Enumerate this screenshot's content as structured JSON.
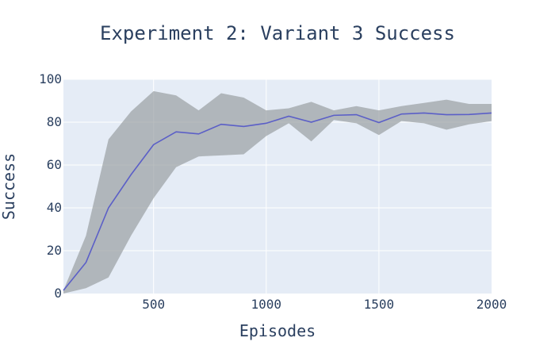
{
  "chart_data": {
    "type": "line",
    "title": "Experiment 2: Variant 3 Success",
    "xlabel": "Episodes",
    "ylabel": "Success",
    "xlim": [
      100,
      2000
    ],
    "ylim": [
      0,
      100
    ],
    "x_ticks": [
      500,
      1000,
      1500,
      2000
    ],
    "y_ticks": [
      0,
      20,
      40,
      60,
      80,
      100
    ],
    "grid": true,
    "colors": {
      "plot_bg": "#e5ecf6",
      "grid": "#ffffff",
      "band": "#9a9fa3",
      "line": "#5b5fc7"
    },
    "x": [
      100,
      200,
      300,
      400,
      500,
      600,
      700,
      800,
      900,
      1000,
      1100,
      1200,
      1300,
      1400,
      1500,
      1600,
      1700,
      1800,
      1900,
      2000
    ],
    "series": [
      {
        "values": [
          1.5,
          14.5,
          40,
          55.5,
          69.5,
          75.5,
          74.5,
          79,
          78,
          79.5,
          82.8,
          80,
          83.2,
          83.5,
          79.8,
          83.8,
          84.3,
          83.5,
          83.6,
          84.3
        ],
        "upper": [
          1.5,
          27,
          72,
          85,
          94.5,
          92.5,
          85.5,
          93.5,
          91.5,
          85.5,
          86.5,
          89.5,
          85.5,
          87.5,
          85.5,
          87.5,
          89,
          90.5,
          88.5,
          88.5
        ],
        "lower": [
          0,
          2.5,
          7.5,
          27,
          44.5,
          59,
          64,
          64.5,
          65,
          73.5,
          79.5,
          71,
          81,
          79.5,
          74,
          80.5,
          79.5,
          76.5,
          79,
          80.5
        ]
      }
    ]
  }
}
